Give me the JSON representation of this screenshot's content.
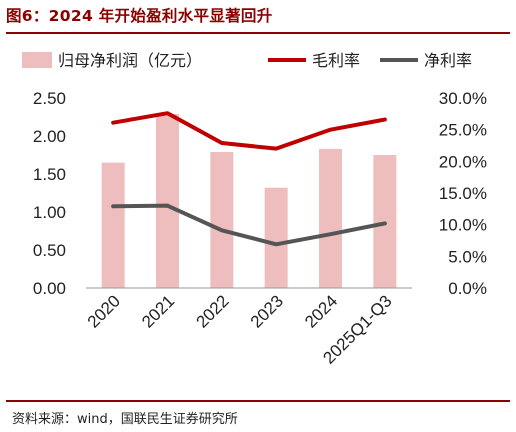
{
  "header": {
    "title": "图6：2024 年开始盈利水平显著回升"
  },
  "footer": {
    "source": "资料来源：wind，国联民生证券研究所"
  },
  "colors": {
    "bar": "#eebdbd",
    "gross_margin": "#c00000",
    "net_margin": "#555555",
    "accent": "#8b0000"
  },
  "chart_data": {
    "type": "bar",
    "categories": [
      "2020",
      "2021",
      "2022",
      "2023",
      "2024",
      "2025Q1-Q3"
    ],
    "series": [
      {
        "name": "归母净利润（亿元）",
        "type": "bar",
        "axis": "left",
        "values": [
          1.65,
          2.29,
          1.79,
          1.32,
          1.83,
          1.75
        ]
      },
      {
        "name": "毛利率",
        "type": "line",
        "axis": "right",
        "values": [
          26.1,
          27.6,
          22.9,
          22.0,
          25.0,
          26.6
        ]
      },
      {
        "name": "净利率",
        "type": "line",
        "axis": "right",
        "values": [
          12.9,
          13.0,
          9.1,
          6.9,
          8.5,
          10.2
        ]
      }
    ],
    "y_left": {
      "lim": [
        0,
        2.5
      ],
      "ticks": [
        "0.00",
        "0.50",
        "1.00",
        "1.50",
        "2.00",
        "2.50"
      ]
    },
    "y_right": {
      "lim": [
        0,
        30
      ],
      "ticks": [
        "0.0%",
        "5.0%",
        "10.0%",
        "15.0%",
        "20.0%",
        "25.0%",
        "30.0%"
      ]
    },
    "legend_position": "top",
    "grid": false
  }
}
